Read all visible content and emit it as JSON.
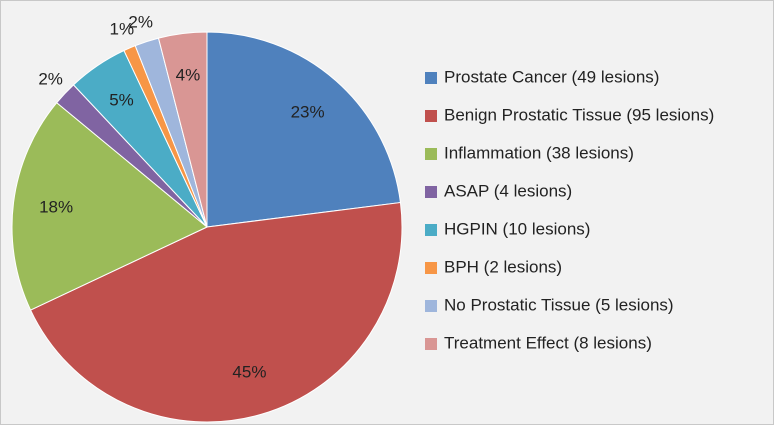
{
  "chart_data": {
    "type": "pie",
    "categories": [
      "Prostate Cancer (49 lesions)",
      "Benign Prostatic Tissue (95 lesions)",
      "Inflammation (38 lesions)",
      "ASAP (4 lesions)",
      "HGPIN (10 lesions)",
      "BPH (2 lesions)",
      "No Prostatic Tissue (5 lesions)",
      "Treatment Effect (8 lesions)"
    ],
    "values": [
      23,
      45,
      18,
      2,
      5,
      1,
      2,
      4
    ],
    "value_labels": [
      "23%",
      "45%",
      "18%",
      "2%",
      "5%",
      "1%",
      "2%",
      "4%"
    ],
    "colors": [
      "#4f81bd",
      "#c0504d",
      "#9bbb59",
      "#8064a2",
      "#4bacc6",
      "#f79646",
      "#9fb6dc",
      "#d99694"
    ],
    "legend": "right"
  }
}
